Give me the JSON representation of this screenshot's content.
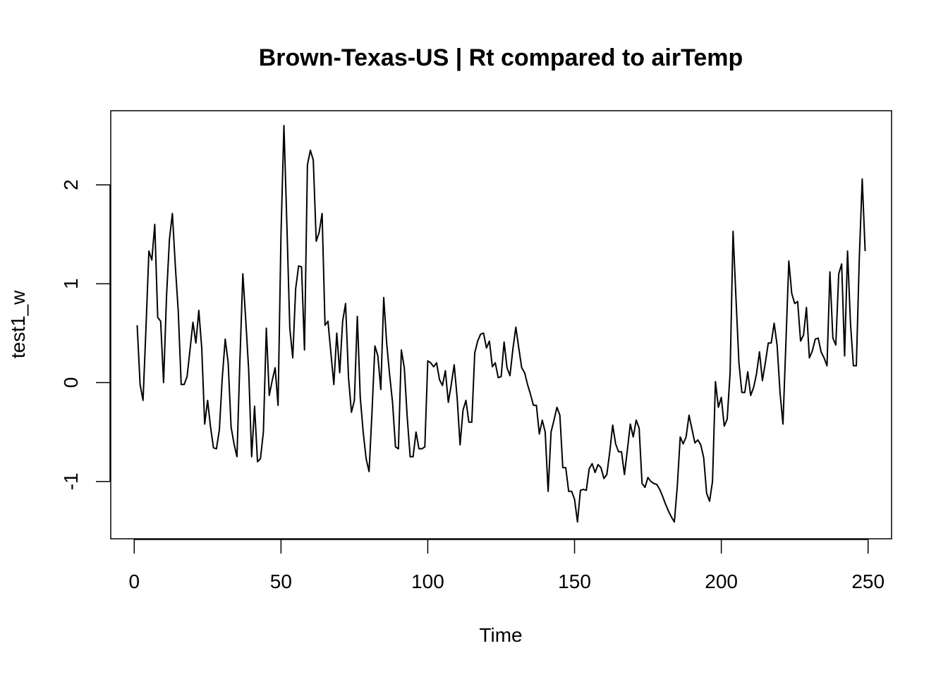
{
  "chart_data": {
    "type": "line",
    "title": "Brown-Texas-US | Rt compared to airTemp",
    "xlabel": "Time",
    "ylabel": "test1_w",
    "xlim": [
      -8,
      258
    ],
    "ylim": [
      -1.58,
      2.75
    ],
    "x_ticks": [
      0,
      50,
      100,
      150,
      200,
      250
    ],
    "y_ticks": [
      -1,
      0,
      1,
      2
    ],
    "grid": false,
    "legend": "none",
    "line_color": "#000000",
    "series": [
      {
        "x_start": 1,
        "values": [
          0.58,
          -0.02,
          -0.18,
          0.55,
          1.33,
          1.24,
          1.6,
          0.66,
          0.62,
          0.0,
          0.87,
          1.45,
          1.71,
          1.18,
          0.72,
          -0.02,
          -0.02,
          0.06,
          0.33,
          0.61,
          0.4,
          0.73,
          0.35,
          -0.42,
          -0.18,
          -0.45,
          -0.66,
          -0.67,
          -0.48,
          0.05,
          0.44,
          0.2,
          -0.45,
          -0.62,
          -0.75,
          0.22,
          1.1,
          0.63,
          0.12,
          -0.75,
          -0.24,
          -0.8,
          -0.77,
          -0.5,
          0.55,
          -0.13,
          0.02,
          0.15,
          -0.23,
          1.5,
          2.6,
          1.6,
          0.55,
          0.25,
          0.95,
          1.18,
          1.17,
          0.33,
          2.2,
          2.35,
          2.25,
          1.43,
          1.52,
          1.71,
          0.58,
          0.62,
          0.3,
          -0.02,
          0.5,
          0.1,
          0.62,
          0.8,
          0.05,
          -0.3,
          -0.18,
          0.67,
          -0.15,
          -0.5,
          -0.77,
          -0.9,
          -0.3,
          0.37,
          0.27,
          -0.07,
          0.86,
          0.4,
          0.08,
          -0.2,
          -0.65,
          -0.67,
          0.33,
          0.15,
          -0.35,
          -0.75,
          -0.75,
          -0.5,
          -0.67,
          -0.67,
          -0.65,
          0.22,
          0.2,
          0.16,
          0.2,
          0.03,
          -0.03,
          0.12,
          -0.2,
          -0.02,
          0.18,
          -0.15,
          -0.63,
          -0.28,
          -0.18,
          -0.4,
          -0.4,
          0.3,
          0.42,
          0.49,
          0.5,
          0.35,
          0.42,
          0.16,
          0.2,
          0.05,
          0.06,
          0.41,
          0.15,
          0.07,
          0.34,
          0.56,
          0.35,
          0.15,
          0.1,
          -0.02,
          -0.12,
          -0.23,
          -0.23,
          -0.52,
          -0.38,
          -0.5,
          -1.1,
          -0.5,
          -0.38,
          -0.25,
          -0.33,
          -0.86,
          -0.86,
          -1.1,
          -1.1,
          -1.18,
          -1.41,
          -1.09,
          -1.08,
          -1.09,
          -0.87,
          -0.82,
          -0.91,
          -0.83,
          -0.86,
          -0.97,
          -0.93,
          -0.7,
          -0.43,
          -0.62,
          -0.7,
          -0.7,
          -0.93,
          -0.68,
          -0.42,
          -0.55,
          -0.38,
          -0.46,
          -1.02,
          -1.06,
          -0.96,
          -1.0,
          -1.02,
          -1.03,
          -1.08,
          -1.15,
          -1.23,
          -1.3,
          -1.36,
          -1.41,
          -1.05,
          -0.55,
          -0.62,
          -0.55,
          -0.33,
          -0.47,
          -0.61,
          -0.58,
          -0.63,
          -0.76,
          -1.12,
          -1.2,
          -1.0,
          0.01,
          -0.25,
          -0.15,
          -0.44,
          -0.37,
          0.1,
          1.53,
          0.85,
          0.2,
          -0.1,
          -0.1,
          0.11,
          -0.13,
          -0.05,
          0.09,
          0.31,
          0.02,
          0.2,
          0.4,
          0.4,
          0.6,
          0.38,
          -0.1,
          -0.42,
          0.4,
          1.23,
          0.9,
          0.8,
          0.82,
          0.42,
          0.48,
          0.76,
          0.25,
          0.32,
          0.44,
          0.45,
          0.31,
          0.25,
          0.17,
          1.12,
          0.45,
          0.38,
          1.1,
          1.2,
          0.27,
          1.33,
          0.6,
          0.17,
          0.17,
          1.25,
          2.06,
          1.33
        ]
      }
    ]
  }
}
